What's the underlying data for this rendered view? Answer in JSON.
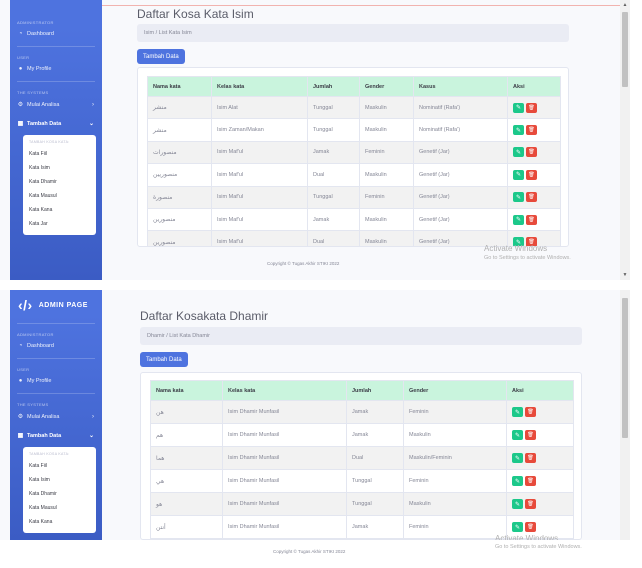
{
  "sidebar_top": {
    "heading_admin": "ADMINISTRATOR",
    "dashboard": "Dashboard",
    "heading_user": "USER",
    "profile": "My Profile",
    "heading_systems": "THE SYSTEMS",
    "analisa": "Mulai Analisa",
    "tambah": "Tambah Data",
    "sub_heading": "TAMBAH KOSA KATA:",
    "sub_items": [
      "Kata Fiil",
      "Kata Isim",
      "Kata Dhamir",
      "Kata Mausul",
      "Kata Kana",
      "Kata Jar"
    ]
  },
  "sidebar_bottom": {
    "brand": "ADMIN PAGE",
    "heading_admin": "ADMINISTRATOR",
    "dashboard": "Dashboard",
    "heading_user": "USER",
    "profile": "My Profile",
    "heading_systems": "THE SYSTEMS",
    "analisa": "Mulai Analisa",
    "tambah": "Tambah Data",
    "sub_heading": "TAMBAH KOSA KATA:",
    "sub_items": [
      "Kata Fiil",
      "Kata Isim",
      "Kata Dhamir",
      "Kata Mausul",
      "Kata Kana"
    ]
  },
  "isim": {
    "title": "Daftar Kosa Kata Isim",
    "breadcrumb": "Isim  /  List Kata Isim",
    "add_button": "Tambah Data",
    "columns": [
      "Nama kata",
      "Kelas kata",
      "Jumlah",
      "Gender",
      "Kasus",
      "Aksi"
    ],
    "rows": [
      [
        "منشر",
        "Isim Alat",
        "Tunggal",
        "Maskulin",
        "Nominatif (Rafa')"
      ],
      [
        "منشر",
        "Isim Zaman/Makan",
        "Tunggal",
        "Maskulin",
        "Nominatif (Rafa')"
      ],
      [
        "منصورات",
        "Isim Maf'ul",
        "Jamak",
        "Feminin",
        "Genetif (Jar)"
      ],
      [
        "منصوريين",
        "Isim Maf'ul",
        "Dual",
        "Maskulin",
        "Genetif (Jar)"
      ],
      [
        "منصورة",
        "Isim Maf'ul",
        "Tunggal",
        "Feminin",
        "Genetif (Jar)"
      ],
      [
        "منصورين",
        "Isim Maf'ul",
        "Jamak",
        "Maskulin",
        "Genetif (Jar)"
      ],
      [
        "منصورين",
        "Isim Maf'ul",
        "Dual",
        "Maskulin",
        "Genetif (Jar)"
      ]
    ],
    "footer": "Copyright © Tugas Akhir STIKI 2022"
  },
  "dhamir": {
    "title": "Daftar Kosakata Dhamir",
    "breadcrumb": "Dhamir  /  List Kata Dhamir",
    "add_button": "Tambah Data",
    "columns": [
      "Nama kata",
      "Kelas kata",
      "Jumlah",
      "Gender",
      "Aksi"
    ],
    "rows": [
      [
        "هن",
        "Isim Dhamir Munfasil",
        "Jamak",
        "Feminin"
      ],
      [
        "هم",
        "Isim Dhamir Munfasil",
        "Jamak",
        "Maskulin"
      ],
      [
        "هما",
        "Isim Dhamir Munfasil",
        "Dual",
        "Maskulin/Feminin"
      ],
      [
        "هي",
        "Isim Dhamir Munfasil",
        "Tunggal",
        "Feminin"
      ],
      [
        "هو",
        "Isim Dhamir Munfasil",
        "Tunggal",
        "Maskulin"
      ],
      [
        "أنتن",
        "Isim Dhamir Munfasil",
        "Jamak",
        "Feminin"
      ]
    ],
    "footer": "Copyright © Tugas Akhir STIKI 2022"
  },
  "watermark": {
    "line1": "Activate Windows",
    "line2": "Go to Settings to activate Windows."
  },
  "caption": "",
  "colors": {
    "primary": "#4e73df",
    "edit": "#1cc88a",
    "delete": "#e74a3b",
    "header": "#c9f4dd"
  },
  "icons": {
    "edit": "edit-icon",
    "delete": "trash-icon",
    "dashboard": "dashboard-icon",
    "user": "user-icon",
    "gear": "gear-icon",
    "table": "table-icon"
  }
}
